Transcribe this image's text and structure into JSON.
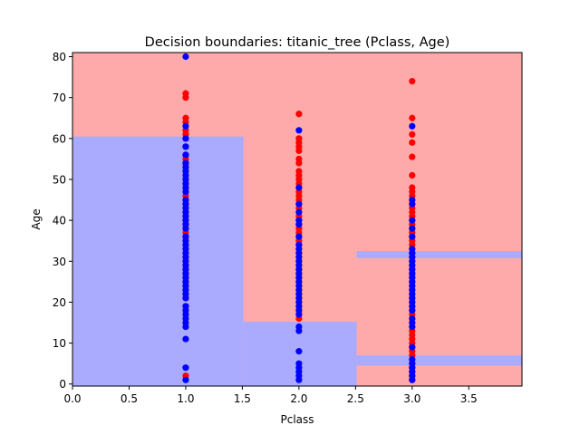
{
  "chart_data": {
    "type": "scatter",
    "title": "Decision boundaries: titanic_tree (Pclass, Age)",
    "xlabel": "Pclass",
    "ylabel": "Age",
    "xlim": [
      0.0,
      3.97
    ],
    "ylim": [
      -0.5,
      81
    ],
    "x_ticks": [
      0.0,
      0.5,
      1.0,
      1.5,
      2.0,
      2.5,
      3.0,
      3.5
    ],
    "x_tick_labels": [
      "0.0",
      "0.5",
      "1.0",
      "1.5",
      "2.0",
      "2.5",
      "3.0",
      "3.5"
    ],
    "y_ticks": [
      0,
      10,
      20,
      30,
      40,
      50,
      60,
      70,
      80
    ],
    "y_tick_labels": [
      "0",
      "10",
      "20",
      "30",
      "40",
      "50",
      "60",
      "70",
      "80"
    ],
    "grid": false,
    "region_colors": {
      "red": "#ffaaaa",
      "blue": "#aaaaff"
    },
    "point_colors": {
      "red": "#ff0000",
      "blue": "#0000ff"
    },
    "regions": [
      {
        "class": "red",
        "x": [
          0.0,
          3.97
        ],
        "y": [
          -0.5,
          81
        ]
      },
      {
        "class": "blue",
        "x": [
          0.0,
          1.51
        ],
        "y": [
          -0.5,
          60.5
        ]
      },
      {
        "class": "blue",
        "x": [
          1.51,
          2.51
        ],
        "y": [
          -0.5,
          15.25
        ]
      },
      {
        "class": "blue",
        "x": [
          2.51,
          3.97
        ],
        "y": [
          30.75,
          32.5
        ]
      },
      {
        "class": "blue",
        "x": [
          2.51,
          3.97
        ],
        "y": [
          4.5,
          7.0
        ]
      }
    ],
    "series": [
      {
        "class": "red",
        "points": [
          [
            1,
            71
          ],
          [
            1,
            70
          ],
          [
            1,
            65
          ],
          [
            1,
            64
          ],
          [
            1,
            62
          ],
          [
            1,
            61
          ],
          [
            1,
            60
          ],
          [
            1,
            58
          ],
          [
            1,
            56
          ],
          [
            1,
            55
          ],
          [
            1,
            54
          ],
          [
            1,
            52
          ],
          [
            1,
            50
          ],
          [
            1,
            49
          ],
          [
            1,
            48
          ],
          [
            1,
            47
          ],
          [
            1,
            46
          ],
          [
            1,
            45
          ],
          [
            1,
            44
          ],
          [
            1,
            42
          ],
          [
            1,
            40
          ],
          [
            1,
            39
          ],
          [
            1,
            37
          ],
          [
            1,
            36
          ],
          [
            1,
            33
          ],
          [
            1,
            31
          ],
          [
            1,
            29
          ],
          [
            1,
            28
          ],
          [
            1,
            27
          ],
          [
            1,
            26
          ],
          [
            1,
            25
          ],
          [
            1,
            24
          ],
          [
            1,
            22
          ],
          [
            1,
            21
          ],
          [
            1,
            19
          ],
          [
            1,
            2
          ],
          [
            2,
            66
          ],
          [
            2,
            60
          ],
          [
            2,
            59
          ],
          [
            2,
            58
          ],
          [
            2,
            57
          ],
          [
            2,
            55
          ],
          [
            2,
            54
          ],
          [
            2,
            52
          ],
          [
            2,
            51
          ],
          [
            2,
            50
          ],
          [
            2,
            49
          ],
          [
            2,
            48
          ],
          [
            2,
            47
          ],
          [
            2,
            46
          ],
          [
            2,
            45
          ],
          [
            2,
            44
          ],
          [
            2,
            43
          ],
          [
            2,
            41
          ],
          [
            2,
            40
          ],
          [
            2,
            39
          ],
          [
            2,
            38
          ],
          [
            2,
            37
          ],
          [
            2,
            36
          ],
          [
            2,
            35
          ],
          [
            2,
            34
          ],
          [
            2,
            33
          ],
          [
            2,
            32
          ],
          [
            2,
            31
          ],
          [
            2,
            30
          ],
          [
            2,
            29
          ],
          [
            2,
            28
          ],
          [
            2,
            27
          ],
          [
            2,
            26
          ],
          [
            2,
            25
          ],
          [
            2,
            24
          ],
          [
            2,
            23
          ],
          [
            2,
            22
          ],
          [
            2,
            21
          ],
          [
            2,
            20
          ],
          [
            2,
            19
          ],
          [
            2,
            18
          ],
          [
            2,
            17
          ],
          [
            2,
            16
          ],
          [
            3,
            74
          ],
          [
            3,
            65
          ],
          [
            3,
            61
          ],
          [
            3,
            59
          ],
          [
            3,
            55.5
          ],
          [
            3,
            51
          ],
          [
            3,
            48
          ],
          [
            3,
            47
          ],
          [
            3,
            46
          ],
          [
            3,
            45
          ],
          [
            3,
            44
          ],
          [
            3,
            43
          ],
          [
            3,
            42
          ],
          [
            3,
            41
          ],
          [
            3,
            40
          ],
          [
            3,
            39
          ],
          [
            3,
            38
          ],
          [
            3,
            37
          ],
          [
            3,
            36
          ],
          [
            3,
            35
          ],
          [
            3,
            34
          ],
          [
            3,
            33
          ],
          [
            3,
            32
          ],
          [
            3,
            31
          ],
          [
            3,
            30
          ],
          [
            3,
            29
          ],
          [
            3,
            28
          ],
          [
            3,
            27
          ],
          [
            3,
            26
          ],
          [
            3,
            25
          ],
          [
            3,
            24
          ],
          [
            3,
            23
          ],
          [
            3,
            22
          ],
          [
            3,
            21
          ],
          [
            3,
            20
          ],
          [
            3,
            19
          ],
          [
            3,
            18
          ],
          [
            3,
            17
          ],
          [
            3,
            16
          ],
          [
            3,
            15
          ],
          [
            3,
            14
          ],
          [
            3,
            13
          ],
          [
            3,
            12
          ],
          [
            3,
            11
          ],
          [
            3,
            10
          ],
          [
            3,
            9
          ],
          [
            3,
            8
          ],
          [
            3,
            7
          ],
          [
            3,
            5
          ],
          [
            3,
            4
          ],
          [
            3,
            3
          ],
          [
            3,
            2
          ],
          [
            3,
            1
          ]
        ]
      },
      {
        "class": "blue",
        "points": [
          [
            1,
            80
          ],
          [
            1,
            63
          ],
          [
            1,
            60
          ],
          [
            1,
            58
          ],
          [
            1,
            56
          ],
          [
            1,
            54
          ],
          [
            1,
            53
          ],
          [
            1,
            52
          ],
          [
            1,
            51
          ],
          [
            1,
            50
          ],
          [
            1,
            49
          ],
          [
            1,
            48
          ],
          [
            1,
            47
          ],
          [
            1,
            45
          ],
          [
            1,
            44
          ],
          [
            1,
            43
          ],
          [
            1,
            42
          ],
          [
            1,
            41
          ],
          [
            1,
            40
          ],
          [
            1,
            39
          ],
          [
            1,
            38
          ],
          [
            1,
            36
          ],
          [
            1,
            35
          ],
          [
            1,
            34
          ],
          [
            1,
            33
          ],
          [
            1,
            32
          ],
          [
            1,
            31
          ],
          [
            1,
            30
          ],
          [
            1,
            29
          ],
          [
            1,
            28
          ],
          [
            1,
            27
          ],
          [
            1,
            26
          ],
          [
            1,
            25
          ],
          [
            1,
            24
          ],
          [
            1,
            23
          ],
          [
            1,
            22
          ],
          [
            1,
            21
          ],
          [
            1,
            19
          ],
          [
            1,
            18
          ],
          [
            1,
            17
          ],
          [
            1,
            16
          ],
          [
            1,
            15
          ],
          [
            1,
            14
          ],
          [
            1,
            11
          ],
          [
            1,
            4
          ],
          [
            1,
            1
          ],
          [
            2,
            62
          ],
          [
            2,
            48
          ],
          [
            2,
            44
          ],
          [
            2,
            42
          ],
          [
            2,
            40
          ],
          [
            2,
            39
          ],
          [
            2,
            36
          ],
          [
            2,
            34
          ],
          [
            2,
            33
          ],
          [
            2,
            32
          ],
          [
            2,
            31
          ],
          [
            2,
            30
          ],
          [
            2,
            29
          ],
          [
            2,
            28
          ],
          [
            2,
            27
          ],
          [
            2,
            26
          ],
          [
            2,
            25
          ],
          [
            2,
            24
          ],
          [
            2,
            23
          ],
          [
            2,
            22
          ],
          [
            2,
            21
          ],
          [
            2,
            20
          ],
          [
            2,
            19
          ],
          [
            2,
            18
          ],
          [
            2,
            17
          ],
          [
            2,
            14
          ],
          [
            2,
            13
          ],
          [
            2,
            8
          ],
          [
            2,
            5
          ],
          [
            2,
            4
          ],
          [
            2,
            3
          ],
          [
            2,
            2
          ],
          [
            2,
            1
          ],
          [
            3,
            63
          ],
          [
            3,
            45
          ],
          [
            3,
            44
          ],
          [
            3,
            40
          ],
          [
            3,
            38
          ],
          [
            3,
            36
          ],
          [
            3,
            33
          ],
          [
            3,
            32
          ],
          [
            3,
            31
          ],
          [
            3,
            30
          ],
          [
            3,
            29
          ],
          [
            3,
            28
          ],
          [
            3,
            27
          ],
          [
            3,
            26
          ],
          [
            3,
            25
          ],
          [
            3,
            24
          ],
          [
            3,
            23
          ],
          [
            3,
            22
          ],
          [
            3,
            21
          ],
          [
            3,
            20
          ],
          [
            3,
            19
          ],
          [
            3,
            18
          ],
          [
            3,
            16
          ],
          [
            3,
            15
          ],
          [
            3,
            14
          ],
          [
            3,
            9
          ],
          [
            3,
            6
          ],
          [
            3,
            5
          ],
          [
            3,
            4
          ],
          [
            3,
            3
          ],
          [
            3,
            2
          ],
          [
            3,
            1
          ]
        ]
      }
    ]
  }
}
